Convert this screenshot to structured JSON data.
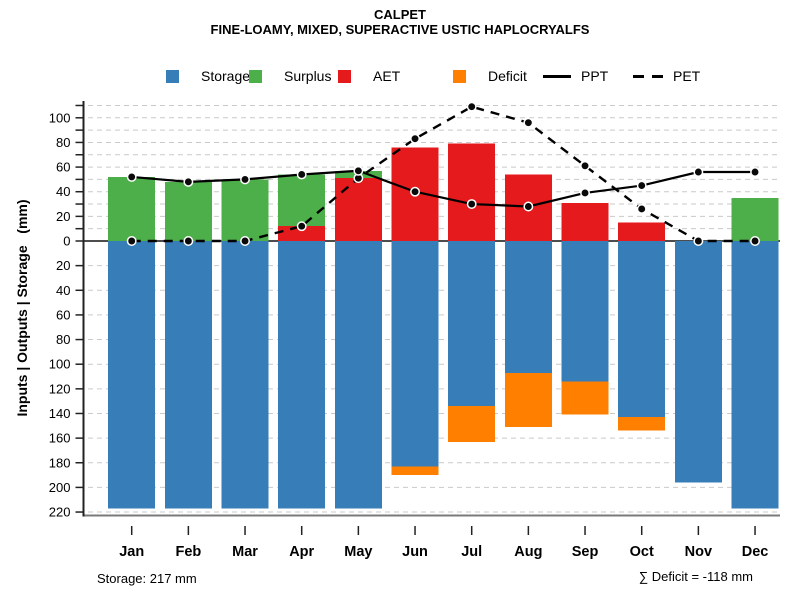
{
  "header": {
    "title": "CALPET",
    "subtitle": "FINE-LOAMY, MIXED, SUPERACTIVE USTIC HAPLOCRYALFS"
  },
  "footer": {
    "storage_note": "Storage: 217 mm",
    "deficit_note": "∑ Deficit = -118 mm"
  },
  "legend": {
    "items": [
      {
        "label": "Storage",
        "swatch": "square",
        "color": "#377EB8"
      },
      {
        "label": "Surplus",
        "swatch": "square",
        "color": "#4DAF4A"
      },
      {
        "label": "AET",
        "swatch": "square",
        "color": "#E41A1C"
      },
      {
        "label": "Deficit",
        "swatch": "square",
        "color": "#FF7F00"
      },
      {
        "label": "PPT",
        "swatch": "solid-line",
        "color": "#000000"
      },
      {
        "label": "PET",
        "swatch": "dashed-line",
        "color": "#000000"
      }
    ]
  },
  "chart_data": {
    "type": "bar",
    "title": "CALPET",
    "subtitle": "FINE-LOAMY, MIXED, SUPERACTIVE USTIC HAPLOCRYALFS",
    "ylabel": "Inputs | Outputs | Storage   (mm)",
    "units": "mm",
    "categories": [
      "Jan",
      "Feb",
      "Mar",
      "Apr",
      "May",
      "Jun",
      "Jul",
      "Aug",
      "Sep",
      "Oct",
      "Nov",
      "Dec"
    ],
    "series": [
      {
        "name": "Storage",
        "render": "bar-down",
        "color": "#377EB8",
        "values": [
          217,
          217,
          217,
          217,
          217,
          183,
          134,
          107,
          114,
          143,
          196,
          217
        ]
      },
      {
        "name": "AET",
        "render": "bar-up",
        "color": "#E41A1C",
        "values": [
          0,
          0,
          0,
          12,
          51,
          76,
          79,
          54,
          31,
          15,
          0,
          0
        ]
      },
      {
        "name": "Surplus",
        "render": "bar-up-stacked",
        "color": "#4DAF4A",
        "values": [
          52,
          48,
          50,
          42,
          6,
          0,
          0,
          0,
          0,
          0,
          0,
          35
        ]
      },
      {
        "name": "Deficit",
        "render": "bar-below-storage",
        "color": "#FF7F00",
        "values": [
          0,
          0,
          0,
          0,
          0,
          7,
          29,
          44,
          27,
          11,
          0,
          0
        ]
      },
      {
        "name": "PPT",
        "render": "line-solid",
        "color": "#000000",
        "values": [
          52,
          48,
          50,
          54,
          57,
          40,
          30,
          28,
          39,
          45,
          56,
          56
        ]
      },
      {
        "name": "PET",
        "render": "line-dashed",
        "color": "#000000",
        "values": [
          0,
          0,
          0,
          12,
          51,
          83,
          109,
          96,
          61,
          26,
          0,
          0
        ]
      }
    ],
    "y_axis": {
      "tick_labels_above_zero": [
        "100",
        "80",
        "60",
        "40",
        "20",
        "0"
      ],
      "tick_labels_below_zero": [
        "20",
        "40",
        "60",
        "80",
        "100",
        "120",
        "140",
        "160",
        "180",
        "200",
        "220"
      ],
      "upper_limit_mm": 110,
      "lower_limit_mm": -220,
      "minor_step_above": 10,
      "step_below": 20,
      "grid": "dashed"
    },
    "legend_position": "top",
    "grid_color": "#c9c9c9"
  }
}
